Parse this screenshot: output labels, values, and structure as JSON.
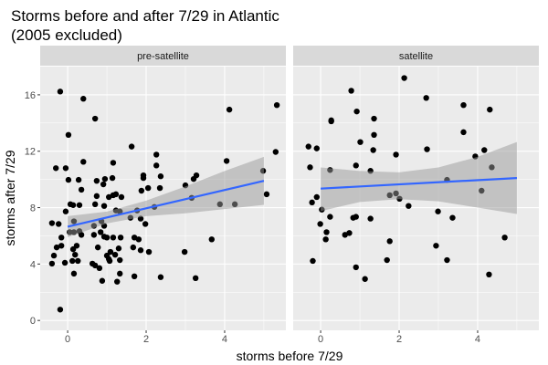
{
  "chart_data": {
    "type": "scatter",
    "title": [
      "Storms before and after 7/29 in Atlantic",
      "(2005 excluded)"
    ],
    "xlabel": "storms before 7/29",
    "ylabel": "storms after 7/29",
    "xlim": [
      -0.7,
      5.56
    ],
    "ylim": [
      -0.7,
      18.0
    ],
    "xticks": [
      0,
      2,
      4
    ],
    "yticks": [
      0,
      4,
      8,
      12,
      16
    ],
    "grid": true,
    "colors": {
      "panel": "#ebebeb",
      "strip": "#d9d9d9",
      "point": "#000000",
      "fit": "#3366ff",
      "band": "#999999"
    },
    "facets": [
      {
        "label": "pre-satellite",
        "fit": {
          "x": [
            0,
            5
          ],
          "y": [
            6.65,
            9.9
          ]
        },
        "band": {
          "x": [
            0,
            1,
            2,
            3,
            4,
            5
          ],
          "lower": [
            5.9,
            6.88,
            7.4,
            7.6,
            7.9,
            8.2
          ],
          "upper": [
            7.4,
            7.72,
            8.5,
            9.5,
            10.6,
            11.6
          ]
        },
        "points": [
          [
            -0.19,
            16.23
          ],
          [
            0.4,
            15.72
          ],
          [
            0.7,
            14.31
          ],
          [
            0.02,
            13.16
          ],
          [
            1.63,
            12.33
          ],
          [
            2.26,
            11.76
          ],
          [
            0.4,
            11.25
          ],
          [
            -0.3,
            10.8
          ],
          [
            -0.05,
            10.8
          ],
          [
            1.16,
            11.18
          ],
          [
            2.26,
            10.99
          ],
          [
            0.02,
            9.97
          ],
          [
            0.28,
            9.97
          ],
          [
            0.74,
            9.9
          ],
          [
            0.95,
            10.03
          ],
          [
            1.14,
            10.1
          ],
          [
            0.91,
            9.65
          ],
          [
            0.35,
            9.27
          ],
          [
            1.93,
            10.29
          ],
          [
            1.93,
            10.1
          ],
          [
            2.37,
            10.22
          ],
          [
            1.88,
            9.2
          ],
          [
            2.05,
            9.39
          ],
          [
            2.35,
            9.39
          ],
          [
            0.74,
            8.82
          ],
          [
            1.05,
            8.75
          ],
          [
            1.16,
            8.88
          ],
          [
            1.23,
            8.95
          ],
          [
            1.37,
            8.75
          ],
          [
            0.07,
            8.24
          ],
          [
            0.14,
            8.18
          ],
          [
            0.3,
            8.18
          ],
          [
            0.7,
            8.24
          ],
          [
            0.93,
            8.12
          ],
          [
            -0.05,
            7.73
          ],
          [
            1.23,
            7.8
          ],
          [
            1.33,
            7.73
          ],
          [
            1.77,
            7.8
          ],
          [
            2.21,
            8.05
          ],
          [
            -0.4,
            6.9
          ],
          [
            -0.23,
            6.84
          ],
          [
            0.16,
            7.03
          ],
          [
            0.67,
            6.71
          ],
          [
            0.86,
            7.03
          ],
          [
            0.93,
            6.71
          ],
          [
            1.6,
            7.28
          ],
          [
            1.86,
            7.22
          ],
          [
            1.98,
            6.84
          ],
          [
            0.05,
            6.26
          ],
          [
            0.16,
            6.26
          ],
          [
            0.3,
            6.33
          ],
          [
            0.35,
            6.07
          ],
          [
            0.67,
            6.07
          ],
          [
            0.84,
            6.26
          ],
          [
            0.93,
            5.94
          ],
          [
            1.0,
            5.88
          ],
          [
            1.16,
            5.88
          ],
          [
            1.35,
            5.88
          ],
          [
            1.7,
            5.88
          ],
          [
            1.81,
            5.75
          ],
          [
            -0.16,
            5.88
          ],
          [
            -0.16,
            5.3
          ],
          [
            -0.28,
            5.18
          ],
          [
            0.14,
            5.05
          ],
          [
            0.23,
            5.3
          ],
          [
            0.19,
            4.66
          ],
          [
            0.77,
            5.18
          ],
          [
            1.3,
            5.11
          ],
          [
            1.67,
            5.18
          ],
          [
            1.86,
            4.98
          ],
          [
            2.07,
            4.86
          ],
          [
            -0.35,
            4.6
          ],
          [
            1.09,
            4.86
          ],
          [
            1.0,
            4.6
          ],
          [
            1.21,
            4.66
          ],
          [
            -0.4,
            4.03
          ],
          [
            -0.07,
            4.09
          ],
          [
            0.12,
            4.22
          ],
          [
            0.26,
            4.22
          ],
          [
            1.05,
            4.35
          ],
          [
            1.07,
            4.22
          ],
          [
            1.33,
            4.28
          ],
          [
            0.63,
            4.03
          ],
          [
            0.7,
            3.9
          ],
          [
            0.81,
            3.71
          ],
          [
            0.16,
            3.32
          ],
          [
            1.33,
            3.32
          ],
          [
            0.88,
            2.81
          ],
          [
            1.26,
            2.75
          ],
          [
            1.7,
            3.13
          ],
          [
            2.37,
            3.07
          ],
          [
            -0.19,
            0.77
          ],
          [
            4.12,
            14.95
          ],
          [
            5.33,
            15.27
          ],
          [
            5.3,
            11.95
          ],
          [
            4.05,
            11.31
          ],
          [
            3.28,
            10.29
          ],
          [
            3.21,
            10.03
          ],
          [
            3.0,
            9.58
          ],
          [
            4.98,
            10.61
          ],
          [
            3.16,
            8.69
          ],
          [
            5.07,
            8.95
          ],
          [
            3.88,
            8.24
          ],
          [
            4.26,
            8.24
          ],
          [
            3.67,
            5.75
          ],
          [
            2.98,
            4.86
          ],
          [
            3.26,
            3.0
          ]
        ]
      },
      {
        "label": "satellite",
        "fit": {
          "x": [
            0,
            5
          ],
          "y": [
            9.35,
            10.1
          ]
        },
        "band": {
          "x": [
            0,
            1,
            2,
            3,
            4,
            5
          ],
          "lower": [
            7.75,
            8.4,
            8.6,
            8.45,
            8.0,
            7.55
          ],
          "upper": [
            10.85,
            10.6,
            10.5,
            10.85,
            11.6,
            12.65
          ]
        },
        "points": [
          [
            2.13,
            17.19
          ],
          [
            0.78,
            16.29
          ],
          [
            0.92,
            14.82
          ],
          [
            0.27,
            14.19
          ],
          [
            0.27,
            14.12
          ],
          [
            1.36,
            14.31
          ],
          [
            1.36,
            13.16
          ],
          [
            1.01,
            12.65
          ],
          [
            -0.31,
            12.33
          ],
          [
            -0.1,
            12.2
          ],
          [
            1.34,
            12.08
          ],
          [
            1.92,
            11.76
          ],
          [
            -0.27,
            10.86
          ],
          [
            0.9,
            10.99
          ],
          [
            0.24,
            10.67
          ],
          [
            1.27,
            10.61
          ],
          [
            1.76,
            8.88
          ],
          [
            1.92,
            9.01
          ],
          [
            2.01,
            8.63
          ],
          [
            2.24,
            8.12
          ],
          [
            -0.1,
            8.75
          ],
          [
            -0.22,
            8.37
          ],
          [
            0.03,
            7.86
          ],
          [
            0.24,
            7.35
          ],
          [
            0.83,
            7.28
          ],
          [
            0.9,
            7.35
          ],
          [
            1.27,
            7.22
          ],
          [
            -0.01,
            6.84
          ],
          [
            0.15,
            6.26
          ],
          [
            0.13,
            5.75
          ],
          [
            0.62,
            6.07
          ],
          [
            0.73,
            6.2
          ],
          [
            1.76,
            5.62
          ],
          [
            -0.2,
            4.22
          ],
          [
            1.69,
            4.28
          ],
          [
            0.9,
            3.77
          ],
          [
            1.13,
            2.94
          ],
          [
            2.69,
            15.78
          ],
          [
            3.64,
            15.27
          ],
          [
            4.31,
            14.95
          ],
          [
            3.64,
            13.35
          ],
          [
            2.71,
            12.14
          ],
          [
            4.17,
            12.08
          ],
          [
            3.94,
            11.63
          ],
          [
            4.36,
            10.86
          ],
          [
            3.22,
            9.97
          ],
          [
            4.1,
            9.2
          ],
          [
            2.99,
            7.73
          ],
          [
            3.36,
            7.28
          ],
          [
            4.69,
            5.88
          ],
          [
            2.94,
            5.3
          ],
          [
            3.22,
            4.28
          ],
          [
            4.29,
            3.26
          ]
        ]
      }
    ]
  }
}
